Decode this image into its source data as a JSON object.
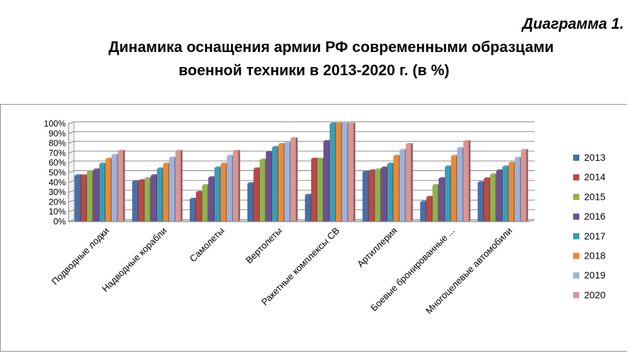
{
  "header": {
    "caption": "Диаграмма 1.",
    "title_line1": "Динамика оснащения армии РФ современными образцами",
    "title_line2": "военной техники в 2013-2020 г. (в %)"
  },
  "chart_data": {
    "type": "bar",
    "title": "Динамика оснащения армии РФ современными образцами военной техники в 2013-2020 г. (в %)",
    "categories": [
      "Подводные лодки",
      "Надводные корабли",
      "Самолеты",
      "Вертолеты",
      "Ракетные комплексы СВ",
      "Артиллерия",
      "Боевые бронированные ...",
      "Многоцелевые автомобили"
    ],
    "yticks": [
      "0%",
      "10%",
      "20%",
      "30%",
      "40%",
      "50%",
      "60%",
      "70%",
      "80%",
      "90%",
      "100%"
    ],
    "ylim": [
      0,
      100
    ],
    "grid": true,
    "legend_position": "right",
    "series": [
      {
        "name": "2013",
        "color": "#4a6fa5",
        "values": [
          47,
          41,
          23,
          39,
          27,
          51,
          20,
          40
        ]
      },
      {
        "name": "2014",
        "color": "#b84a47",
        "values": [
          47,
          42,
          30,
          54,
          64,
          52,
          25,
          44
        ]
      },
      {
        "name": "2015",
        "color": "#93b04e",
        "values": [
          51,
          44,
          37,
          63,
          64,
          53,
          37,
          48
        ]
      },
      {
        "name": "2016",
        "color": "#6f4f93",
        "values": [
          53,
          47,
          45,
          71,
          82,
          55,
          44,
          52
        ]
      },
      {
        "name": "2017",
        "color": "#3f9cb0",
        "values": [
          59,
          54,
          55,
          76,
          100,
          59,
          56,
          56
        ]
      },
      {
        "name": "2018",
        "color": "#e88a3a",
        "values": [
          64,
          59,
          59,
          79,
          100,
          67,
          67,
          60
        ]
      },
      {
        "name": "2019",
        "color": "#9fb2db",
        "values": [
          68,
          65,
          67,
          81,
          100,
          73,
          75,
          65
        ]
      },
      {
        "name": "2020",
        "color": "#d99694",
        "values": [
          72,
          72,
          72,
          85,
          100,
          79,
          82,
          73
        ]
      }
    ]
  }
}
